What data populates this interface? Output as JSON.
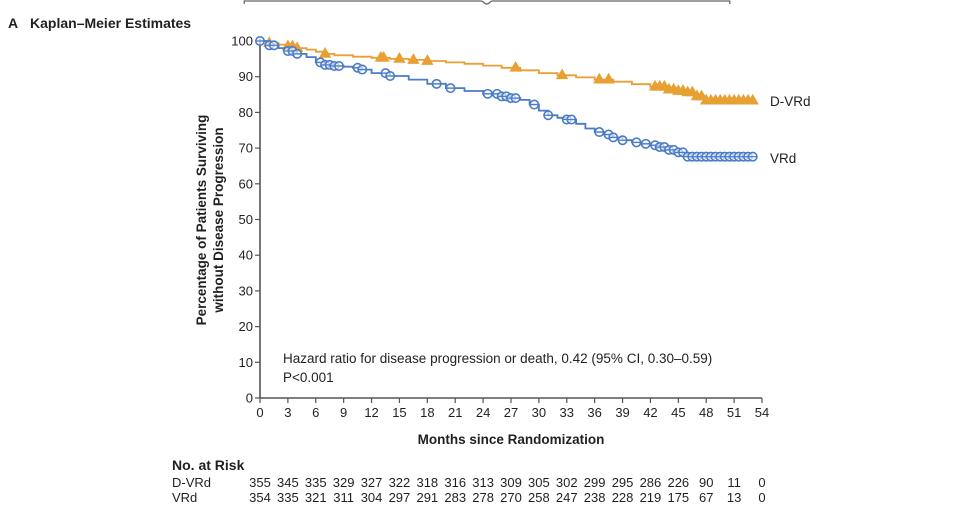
{
  "panel": {
    "letter": "A",
    "title": "Kaplan–Meier Estimates"
  },
  "chart_data": {
    "type": "line",
    "title": "Kaplan–Meier Estimates",
    "xlabel": "Months since Randomization",
    "ylabel_lines": [
      "Percentage of Patients Surviving",
      "without Disease Progression"
    ],
    "xlim": [
      0,
      54
    ],
    "ylim": [
      0,
      100
    ],
    "xticks": [
      0,
      3,
      6,
      9,
      12,
      15,
      18,
      21,
      24,
      27,
      30,
      33,
      36,
      39,
      42,
      45,
      48,
      51,
      54
    ],
    "yticks": [
      0,
      10,
      20,
      30,
      40,
      50,
      60,
      70,
      80,
      90,
      100
    ],
    "grid": false,
    "legend": "inline labels at right end of curves",
    "series": [
      {
        "name": "D-VRd",
        "color": "#e8a033",
        "marker": "triangle",
        "x": [
          0,
          1,
          2,
          3,
          4,
          5,
          6,
          7,
          8,
          10,
          12,
          14,
          16,
          18,
          20,
          22,
          24,
          26,
          28,
          30,
          32,
          34,
          36,
          38,
          40,
          42,
          44,
          45,
          46,
          47,
          48,
          50,
          52,
          53
        ],
        "y": [
          100,
          99.4,
          99,
          98.5,
          98,
          97.6,
          97,
          96.4,
          96,
          95.6,
          95.3,
          95,
          94.7,
          94.4,
          94,
          93.6,
          93.1,
          92.5,
          91.8,
          91,
          90.4,
          89.8,
          89.2,
          88.6,
          87.9,
          87.2,
          86.4,
          86,
          85.6,
          84.5,
          83.3,
          83.3,
          83.3,
          83.3
        ],
        "censor_x": [
          1,
          3,
          3.5,
          4,
          7,
          13,
          13.3,
          15,
          16.5,
          18,
          27.5,
          32.5,
          36.5,
          37.5,
          42.5,
          43,
          43.5,
          44,
          44.5,
          45,
          45.5,
          46,
          46.5,
          47,
          47.5,
          48,
          48.5,
          49,
          49.5,
          50,
          50.5,
          51,
          51.5,
          52,
          52.5,
          53
        ]
      },
      {
        "name": "VRd",
        "color": "#4a7cc7",
        "marker": "open-circle",
        "x": [
          0,
          1,
          2,
          3,
          4,
          5,
          6,
          7,
          8,
          9,
          10,
          11,
          12,
          14,
          16,
          18,
          20,
          22,
          24,
          26,
          27,
          28,
          29,
          30,
          31,
          32,
          33,
          34,
          35,
          36,
          37,
          38,
          39,
          40,
          41,
          42,
          43,
          44,
          45,
          46,
          48,
          50,
          52,
          53
        ],
        "y": [
          100,
          98.8,
          98,
          97.2,
          96.4,
          95.5,
          94,
          93.3,
          93,
          92.8,
          92.5,
          92,
          91,
          90.2,
          89.2,
          88,
          86.8,
          86,
          85.2,
          84.5,
          84,
          83.5,
          82.2,
          80.5,
          79.2,
          78.5,
          78,
          76.8,
          75.5,
          74.5,
          73.8,
          73,
          72.2,
          71.6,
          71.2,
          70.8,
          70.3,
          69.5,
          68.8,
          67.6,
          67.6,
          67.6,
          67.6,
          67.6
        ],
        "censor_x": [
          0,
          1,
          1.5,
          3,
          3.5,
          4,
          6.5,
          7,
          7.5,
          8,
          8.5,
          10.5,
          11,
          13.5,
          14,
          19,
          20.5,
          24.5,
          25.5,
          26,
          26.5,
          27,
          27.5,
          29.5,
          31,
          33,
          33.5,
          36.5,
          37.5,
          38,
          39,
          40.5,
          41.5,
          42.5,
          43,
          43.5,
          44,
          44.5,
          45,
          45.5,
          46,
          46.5,
          47,
          47.5,
          48,
          48.5,
          49,
          49.5,
          50,
          50.5,
          51,
          51.5,
          52,
          52.5,
          53
        ]
      }
    ],
    "annotations": [
      "Hazard ratio for disease progression or death, 0.42 (95% CI, 0.30–0.59)",
      "P<0.001"
    ]
  },
  "risk_table": {
    "title": "No. at Risk",
    "rows": [
      {
        "label": "D-VRd",
        "values": [
          "355",
          "345",
          "335",
          "329",
          "327",
          "322",
          "318",
          "316",
          "313",
          "309",
          "305",
          "302",
          "299",
          "295",
          "286",
          "226",
          "90",
          "11",
          "0"
        ]
      },
      {
        "label": "VRd",
        "values": [
          "354",
          "335",
          "321",
          "311",
          "304",
          "297",
          "291",
          "283",
          "278",
          "270",
          "258",
          "247",
          "238",
          "228",
          "219",
          "175",
          "67",
          "13",
          "0"
        ]
      }
    ]
  }
}
